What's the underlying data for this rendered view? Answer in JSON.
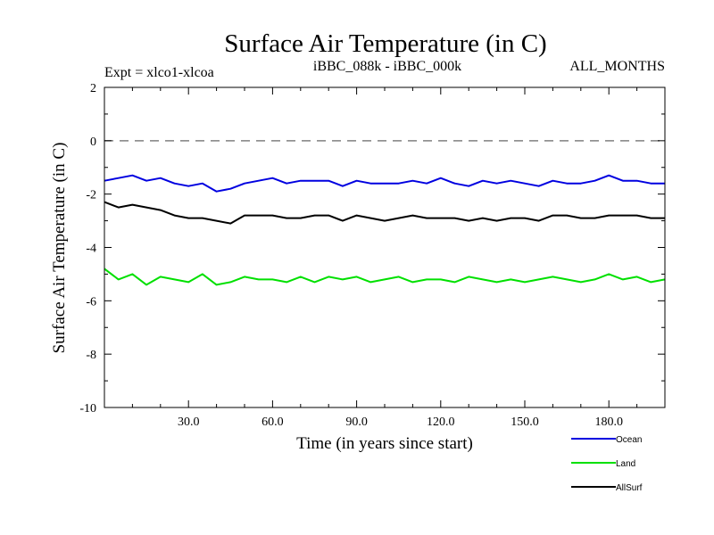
{
  "chart_data": {
    "type": "line",
    "title": "Surface Air Temperature (in C)",
    "subtitle_left": "Expt = xlco1-xlcoa",
    "subtitle_center": "iBBC_088k - iBBC_000k",
    "subtitle_right": "ALL_MONTHS",
    "xlabel": "Time (in years since start)",
    "ylabel": "Surface Air Temperature (in C)",
    "xlim": [
      0,
      200
    ],
    "ylim": [
      -10,
      2
    ],
    "x_ticks": [
      30,
      60,
      90,
      120,
      150,
      180
    ],
    "x_tick_labels": [
      "30.0",
      "60.0",
      "90.0",
      "120.0",
      "150.0",
      "180.0"
    ],
    "y_ticks": [
      -10,
      -8,
      -6,
      -4,
      -2,
      0,
      2
    ],
    "y_tick_labels": [
      "-10",
      "-8",
      "-6",
      "-4",
      "-2",
      "0",
      "2"
    ],
    "reference_line": {
      "y": 0,
      "style": "dashed",
      "color": "#808080"
    },
    "legend_position": "bottom-right",
    "series": [
      {
        "name": "Ocean",
        "color": "#0000e0",
        "x": [
          0,
          5,
          10,
          15,
          20,
          25,
          30,
          35,
          40,
          45,
          50,
          55,
          60,
          65,
          70,
          75,
          80,
          85,
          90,
          95,
          100,
          105,
          110,
          115,
          120,
          125,
          130,
          135,
          140,
          145,
          150,
          155,
          160,
          165,
          170,
          175,
          180,
          185,
          190,
          195,
          200
        ],
        "values": [
          -1.5,
          -1.4,
          -1.3,
          -1.5,
          -1.4,
          -1.6,
          -1.7,
          -1.6,
          -1.9,
          -1.8,
          -1.6,
          -1.5,
          -1.4,
          -1.6,
          -1.5,
          -1.5,
          -1.5,
          -1.7,
          -1.5,
          -1.6,
          -1.6,
          -1.6,
          -1.5,
          -1.6,
          -1.4,
          -1.6,
          -1.7,
          -1.5,
          -1.6,
          -1.5,
          -1.6,
          -1.7,
          -1.5,
          -1.6,
          -1.6,
          -1.5,
          -1.3,
          -1.5,
          -1.5,
          -1.6,
          -1.6
        ]
      },
      {
        "name": "Land",
        "color": "#00e000",
        "x": [
          0,
          5,
          10,
          15,
          20,
          25,
          30,
          35,
          40,
          45,
          50,
          55,
          60,
          65,
          70,
          75,
          80,
          85,
          90,
          95,
          100,
          105,
          110,
          115,
          120,
          125,
          130,
          135,
          140,
          145,
          150,
          155,
          160,
          165,
          170,
          175,
          180,
          185,
          190,
          195,
          200
        ],
        "values": [
          -4.8,
          -5.2,
          -5.0,
          -5.4,
          -5.1,
          -5.2,
          -5.3,
          -5.0,
          -5.4,
          -5.3,
          -5.1,
          -5.2,
          -5.2,
          -5.3,
          -5.1,
          -5.3,
          -5.1,
          -5.2,
          -5.1,
          -5.3,
          -5.2,
          -5.1,
          -5.3,
          -5.2,
          -5.2,
          -5.3,
          -5.1,
          -5.2,
          -5.3,
          -5.2,
          -5.3,
          -5.2,
          -5.1,
          -5.2,
          -5.3,
          -5.2,
          -5.0,
          -5.2,
          -5.1,
          -5.3,
          -5.2
        ]
      },
      {
        "name": "AllSurf",
        "color": "#000000",
        "x": [
          0,
          5,
          10,
          15,
          20,
          25,
          30,
          35,
          40,
          45,
          50,
          55,
          60,
          65,
          70,
          75,
          80,
          85,
          90,
          95,
          100,
          105,
          110,
          115,
          120,
          125,
          130,
          135,
          140,
          145,
          150,
          155,
          160,
          165,
          170,
          175,
          180,
          185,
          190,
          195,
          200
        ],
        "values": [
          -2.3,
          -2.5,
          -2.4,
          -2.5,
          -2.6,
          -2.8,
          -2.9,
          -2.9,
          -3.0,
          -3.1,
          -2.8,
          -2.8,
          -2.8,
          -2.9,
          -2.9,
          -2.8,
          -2.8,
          -3.0,
          -2.8,
          -2.9,
          -3.0,
          -2.9,
          -2.8,
          -2.9,
          -2.9,
          -2.9,
          -3.0,
          -2.9,
          -3.0,
          -2.9,
          -2.9,
          -3.0,
          -2.8,
          -2.8,
          -2.9,
          -2.9,
          -2.8,
          -2.8,
          -2.8,
          -2.9,
          -2.9
        ]
      }
    ]
  }
}
